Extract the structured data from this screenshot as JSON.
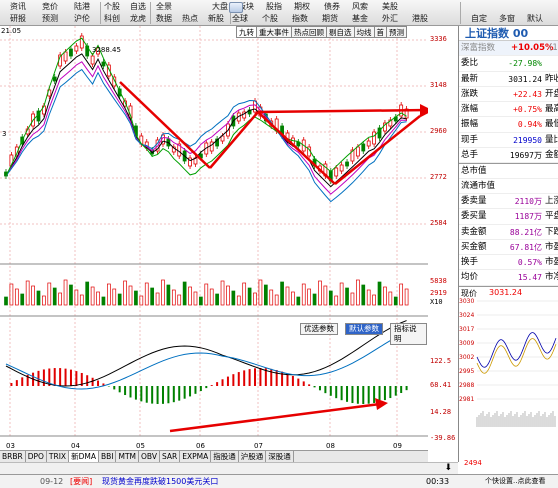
{
  "toolbar": {
    "row1": [
      "资讯",
      "竞价",
      "陆港",
      "个股",
      "自选",
      "全景",
      "大盘",
      "板块",
      "股指",
      "期权",
      "债券",
      "风索",
      "美股"
    ],
    "row2": [
      "研报",
      "预测",
      "沪伦",
      "科创",
      "龙虎",
      "数据",
      "热点",
      "新股",
      "全球",
      "个股",
      "指数",
      "期货",
      "基金",
      "外汇",
      "港股"
    ],
    "right": [
      "自定",
      "多窗",
      "默认"
    ]
  },
  "chart": {
    "date_label": "21.05",
    "peak_label": "3288.45",
    "left_marker": "3",
    "price_axis": [
      "3336",
      "3148",
      "2960",
      "2772",
      "2584"
    ],
    "vol_axis": [
      "5838",
      "2919",
      "X10"
    ],
    "ind_axis": [
      "122.5",
      "68.41",
      "14.28",
      "-39.86"
    ],
    "x_labels": [
      "03",
      "04",
      "05",
      "06",
      "07",
      "08",
      "09"
    ],
    "indicator_buttons": [
      "优选参数",
      "默认参数",
      "指标说明"
    ]
  },
  "top_tabs": [
    "九转",
    "重大事件",
    "热点回顾",
    "剔自选",
    "均线",
    "首",
    "预测"
  ],
  "bottom_tabs": [
    "BRBR",
    "DPO",
    "TRIX",
    "新DMA",
    "BBI",
    "MTM",
    "OBV",
    "SAR",
    "EXPMA",
    "指股通",
    "沪股通",
    "深股通"
  ],
  "panel": {
    "title": "上证指数 00",
    "sub": {
      "label": "深富指数",
      "change": "+10.05%",
      "suffix": "(1"
    },
    "rows": [
      {
        "label": "委比",
        "value": "-27.98%",
        "right": "",
        "cls": "green"
      },
      {
        "label": "最新",
        "value": "3031.24",
        "right": "昨收",
        "cls": ""
      },
      {
        "label": "涨跌",
        "value": "+22.43",
        "right": "开盘",
        "cls": "red"
      },
      {
        "label": "涨幅",
        "value": "+0.75%",
        "right": "最高",
        "cls": "red"
      },
      {
        "label": "振幅",
        "value": "0.94%",
        "right": "最低",
        "cls": "red"
      },
      {
        "label": "现手",
        "value": "219950",
        "right": "量比",
        "cls": "blue"
      },
      {
        "label": "总手",
        "value": "19697万",
        "right": "金额",
        "cls": ""
      },
      {
        "label": "总市值",
        "value": "",
        "right": "",
        "cls": ""
      },
      {
        "label": "流通市值",
        "value": "",
        "right": "",
        "cls": ""
      },
      {
        "label": "委卖量",
        "value": "2110万",
        "right": "上涨",
        "cls": "purple"
      },
      {
        "label": "委买量",
        "value": "1187万",
        "right": "平盘",
        "cls": "purple"
      },
      {
        "label": "卖金额",
        "value": "88.21亿",
        "right": "下跌",
        "cls": "purple"
      },
      {
        "label": "买金额",
        "value": "67.81亿",
        "right": "市盈",
        "cls": "purple"
      },
      {
        "label": "换手",
        "value": "0.57%",
        "right": "市盈",
        "cls": "purple"
      },
      {
        "label": "均价",
        "value": "15.47",
        "right": "市净",
        "cls": "purple"
      }
    ],
    "mini": {
      "label": "现价",
      "value": "3031.24",
      "axis": [
        "3030",
        "3024",
        "3017",
        "3009",
        "3002",
        "2995",
        "2988",
        "2981"
      ],
      "vol": "2494",
      "foot": "个快设置..点此查看"
    }
  },
  "ticker": {
    "time": "09-12",
    "tag": "[要闻]",
    "text": "现货黄金再度跌破1500美元关口",
    "right": "00:33"
  },
  "colors": {
    "up": "#e00000",
    "down": "#008000",
    "arrow": "#e60000",
    "ma1": "#000000",
    "ma2": "#c000c0",
    "ma3": "#0070c0",
    "ma4": "#00a000"
  }
}
